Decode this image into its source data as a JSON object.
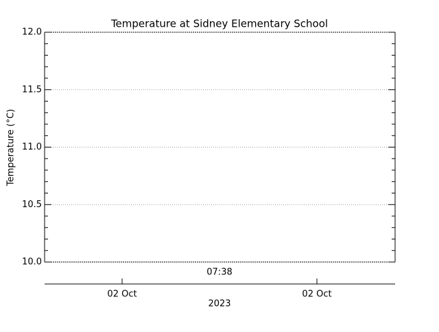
{
  "chart_data": {
    "type": "line",
    "title": "Temperature at Sidney Elementary School",
    "ylabel": "Temperature (°C)",
    "ylim": [
      10,
      12
    ],
    "yticks": [
      {
        "value": 10,
        "label": "10.0"
      },
      10.5,
      {
        "value": 11,
        "label": "11.0"
      },
      11.5,
      {
        "value": 12,
        "label": "12.0"
      }
    ],
    "grid": true,
    "time_label": "07:38",
    "date_ticks": [
      "02 Oct",
      "02 Oct"
    ],
    "xlabel": "2023",
    "series": []
  }
}
